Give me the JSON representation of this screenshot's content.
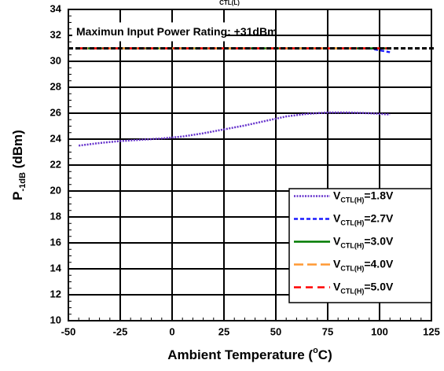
{
  "chart_data": {
    "type": "line",
    "title_fragment": "CTL(L)",
    "xlabel": {
      "text": "Ambient Temperature  (",
      "superscript": "o",
      "suffix": "C)"
    },
    "ylabel": {
      "text": "P",
      "subscript": "-1dB",
      "suffix": "  (dBm)"
    },
    "xlim": [
      -50,
      125
    ],
    "xticks": [
      -50,
      -25,
      0,
      25,
      50,
      75,
      100,
      125
    ],
    "ylim": [
      10,
      34
    ],
    "yticks": [
      10,
      12,
      14,
      16,
      18,
      20,
      22,
      24,
      26,
      28,
      30,
      32,
      34
    ],
    "grid": true,
    "reference_line": {
      "value": 31,
      "label": "Maximun Input Power Rating: +31dBm",
      "color": "#000000"
    },
    "legend_position": "lower right",
    "legend_prefix": "V",
    "legend_subscript": "CTL(H)",
    "x": [
      -45,
      -35,
      -25,
      -15,
      -5,
      5,
      15,
      25,
      35,
      45,
      55,
      65,
      75,
      85,
      95,
      105
    ],
    "series": [
      {
        "name": "=1.8V",
        "color": "#6633cc",
        "dash": "2,1.5",
        "values": [
          23.5,
          23.7,
          23.85,
          23.95,
          24.05,
          24.2,
          24.45,
          24.75,
          25.05,
          25.4,
          25.75,
          25.95,
          26.05,
          26.05,
          26.0,
          25.9
        ]
      },
      {
        "name": "=2.7V",
        "color": "#1a1aff",
        "dash": "5,3",
        "values": [
          31,
          31,
          31,
          31,
          31,
          31,
          31,
          31,
          31,
          31,
          31,
          31,
          31,
          31,
          31,
          30.7
        ]
      },
      {
        "name": "=3.0V",
        "color": "#007a00",
        "dash": "",
        "values": [
          31,
          31,
          31,
          31,
          31,
          31,
          31,
          31,
          31,
          31,
          31,
          31,
          31,
          31,
          31,
          31
        ]
      },
      {
        "name": "=4.0V",
        "color": "#ff9933",
        "dash": "12,5",
        "values": [
          31,
          31,
          31,
          31,
          31,
          31,
          31,
          31,
          31,
          31,
          31,
          31,
          31,
          31,
          31,
          31
        ]
      },
      {
        "name": "=5.0V",
        "color": "#ff0000",
        "dash": "9,6",
        "values": [
          31,
          31,
          31,
          31,
          31,
          31,
          31,
          31,
          31,
          31,
          31,
          31,
          31,
          31,
          31,
          31
        ]
      }
    ]
  }
}
